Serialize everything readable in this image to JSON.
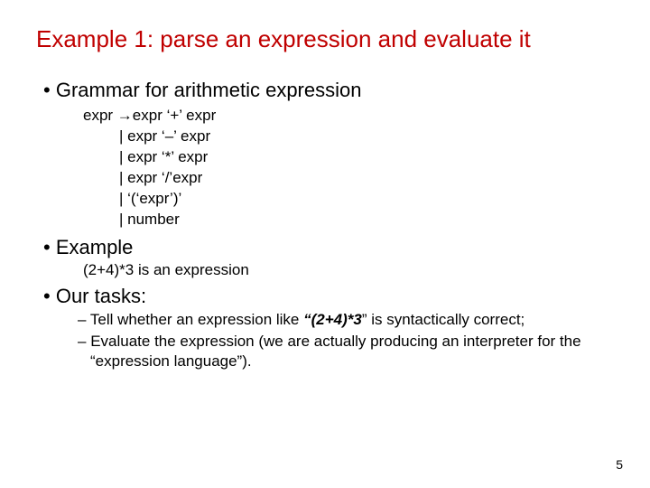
{
  "title": "Example 1: parse an expression and evaluate it",
  "bullet1": "Grammar for arithmetic expression",
  "grammar": {
    "l1": "expr →expr ‘+’ expr",
    "l2": "| expr ‘–’ expr",
    "l3": "| expr ‘*’ expr",
    "l4": "| expr ‘/’expr",
    "l5": "| ‘(‘expr’)’",
    "l6": "| number"
  },
  "bullet2": "Example",
  "example_text": "(2+4)*3 is an expression",
  "bullet3": "Our tasks:",
  "task1_pre": "Tell whether an expression like ",
  "task1_bold": "“(2+4)*3",
  "task1_post": "” is syntactically correct;",
  "task2": "Evaluate the expression (we are actually producing an interpreter for the “expression language”).",
  "page": "5",
  "colors": {
    "title": "#c00000",
    "body": "#000000",
    "background": "#ffffff"
  },
  "fonts": {
    "title_size": 26,
    "bullet_size": 22,
    "body_size": 17,
    "pagenum_size": 14,
    "family": "Arial"
  }
}
